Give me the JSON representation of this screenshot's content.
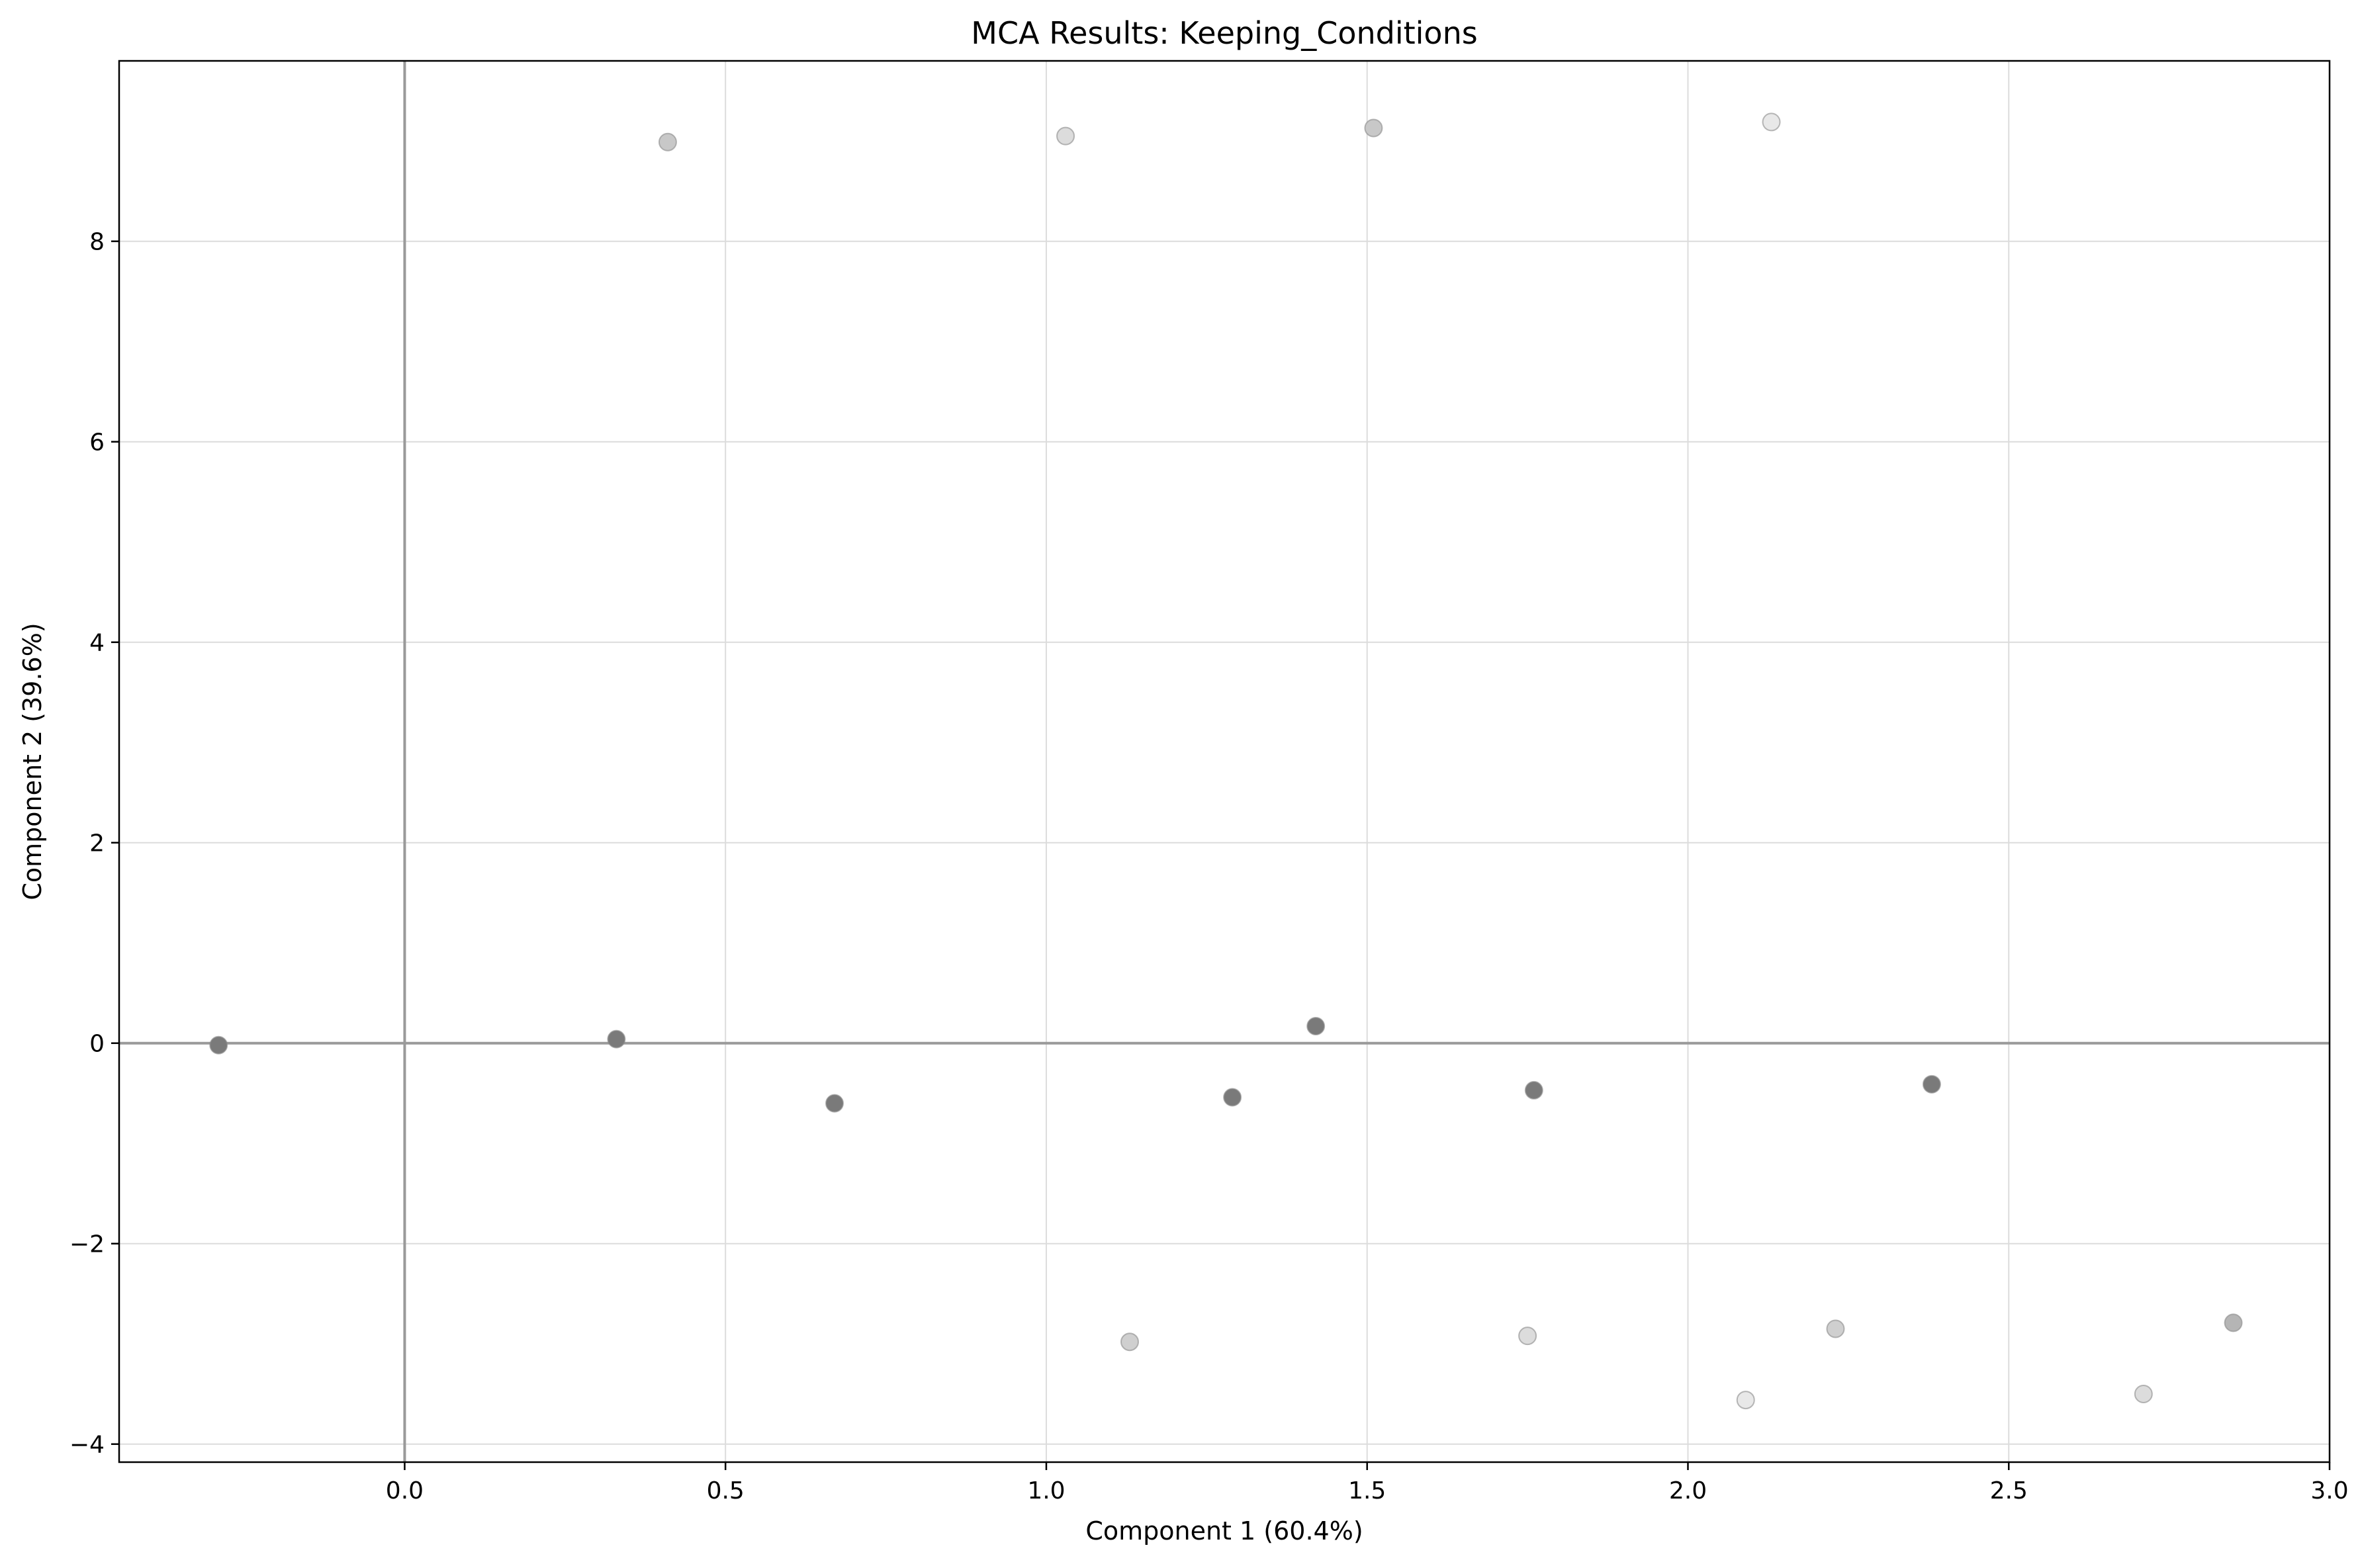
{
  "chart_data": {
    "type": "scatter",
    "title": "MCA Results: Keeping_Conditions",
    "xlabel": "Component 1 (60.4%)",
    "ylabel": "Component 2 (39.6%)",
    "xlim": [
      -0.445,
      3.0
    ],
    "ylim": [
      -4.18,
      9.8
    ],
    "xticks": [
      0.0,
      0.5,
      1.0,
      1.5,
      2.0,
      2.5,
      3.0
    ],
    "xtick_labels": [
      "0.0",
      "0.5",
      "1.0",
      "1.5",
      "2.0",
      "2.5",
      "3.0"
    ],
    "yticks": [
      -4,
      -2,
      0,
      2,
      4,
      6,
      8
    ],
    "ytick_labels": [
      "−4",
      "−2",
      "0",
      "2",
      "4",
      "6",
      "8"
    ],
    "grid": true,
    "reference_lines": {
      "x": 0,
      "y": 0
    },
    "points": [
      {
        "x": -0.29,
        "y": -0.02,
        "color": "#7a7a7a"
      },
      {
        "x": 0.33,
        "y": 0.04,
        "color": "#7a7a7a"
      },
      {
        "x": 0.67,
        "y": -0.6,
        "color": "#7a7a7a"
      },
      {
        "x": 1.29,
        "y": -0.54,
        "color": "#7a7a7a"
      },
      {
        "x": 1.42,
        "y": 0.17,
        "color": "#7a7a7a"
      },
      {
        "x": 1.76,
        "y": -0.47,
        "color": "#7a7a7a"
      },
      {
        "x": 2.38,
        "y": -0.41,
        "color": "#7a7a7a"
      },
      {
        "x": 0.41,
        "y": 8.99,
        "color": "#c8c8c8"
      },
      {
        "x": 1.03,
        "y": 9.05,
        "color": "#dcdcdc"
      },
      {
        "x": 1.51,
        "y": 9.13,
        "color": "#c8c8c8"
      },
      {
        "x": 2.13,
        "y": 9.19,
        "color": "#e8e8e8"
      },
      {
        "x": 1.13,
        "y": -2.98,
        "color": "#cfcfcf"
      },
      {
        "x": 1.75,
        "y": -2.92,
        "color": "#dcdcdc"
      },
      {
        "x": 2.09,
        "y": -3.56,
        "color": "#e8e8e8"
      },
      {
        "x": 2.23,
        "y": -2.85,
        "color": "#cfcfcf"
      },
      {
        "x": 2.71,
        "y": -3.5,
        "color": "#dcdcdc"
      },
      {
        "x": 2.85,
        "y": -2.79,
        "color": "#b5b5b5"
      }
    ]
  }
}
